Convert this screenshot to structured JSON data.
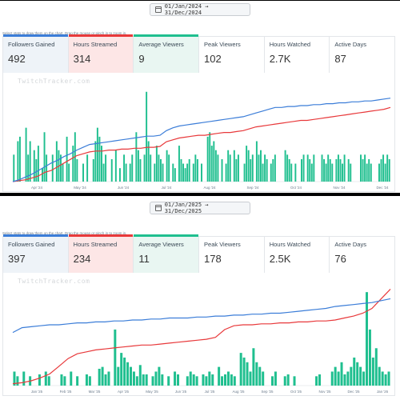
{
  "hint_text": "Select stats to draw them on the chart. Drag the mouse or pinch in to zoom in.",
  "watermark": "TwitchTracker.com",
  "colors": {
    "followers": "#3b7dd8",
    "hours": "#e8393b",
    "viewers": "#1fbf8f"
  },
  "icons": {
    "date_range": "calendar-icon"
  },
  "panels": [
    {
      "date_range": "01/Jan/2024 → 31/Dec/2024",
      "stats": [
        {
          "label": "Followers Gained",
          "value": "492"
        },
        {
          "label": "Hours Streamed",
          "value": "314"
        },
        {
          "label": "Average Viewers",
          "value": "9"
        },
        {
          "label": "Peak Viewers",
          "value": "102"
        },
        {
          "label": "Hours Watched",
          "value": "2.7K"
        },
        {
          "label": "Active Days",
          "value": "87"
        }
      ],
      "chart_data": {
        "type": "line",
        "x_labels": [
          "Apr '24",
          "May '24",
          "Jun '24",
          "Jul '24",
          "Aug '24",
          "Sep '24",
          "Oct '24",
          "Nov '24",
          "Dec '24"
        ],
        "series": [],
        "bars_daily_avg_viewers": [
          0.3,
          0,
          0.45,
          0.5,
          0,
          0,
          0.6,
          0.3,
          0.45,
          0,
          0.35,
          0.25,
          0.4,
          0,
          0.15,
          0.55,
          0.3,
          0,
          0,
          0.3,
          0,
          0.45,
          0.35,
          0.3,
          0.2,
          0,
          0.5,
          0.2,
          0,
          0.4,
          0.55,
          0.25,
          0,
          0,
          0.2,
          0,
          0.3,
          0,
          0,
          0.25,
          0.45,
          0.6,
          0.5,
          0.4,
          0.2,
          0.3,
          0,
          0,
          0.25,
          0,
          0.35,
          0,
          0.15,
          0,
          0.3,
          0.2,
          0,
          0.2,
          0.3,
          0,
          0.55,
          0.35,
          0.25,
          0,
          0.3,
          1.0,
          0.45,
          0.3,
          0,
          0.2,
          0.4,
          0.3,
          0.25,
          0.2,
          0,
          0.35,
          0.3,
          0,
          0.2,
          0.15,
          0,
          0.4,
          0.25,
          0.2,
          0.15,
          0.2,
          0.25,
          0,
          0.2,
          0.3,
          0.25,
          0,
          0.2,
          0,
          0,
          0.5,
          0.55,
          0.4,
          0.45,
          0.35,
          0.3,
          0,
          0.25,
          0,
          0.2,
          0.35,
          0.3,
          0,
          0.35,
          0.25,
          0.3,
          0,
          0,
          0.2,
          0.4,
          0.35,
          0.25,
          0.3,
          0,
          0.45,
          0.3,
          0.35,
          0.2,
          0.3,
          0.25,
          0,
          0.2,
          0.25,
          0.3,
          0,
          0,
          0,
          0,
          0.35,
          0.3,
          0.25,
          0.2,
          0,
          0.2,
          0,
          0,
          0.25,
          0.3,
          0,
          0.3,
          0.25,
          0.2,
          0.3,
          0,
          0,
          0,
          0.3,
          0.25,
          0.2,
          0.3,
          0.25,
          0.2,
          0,
          0.25,
          0.3,
          0.25,
          0.2,
          0.3,
          0,
          0.25,
          0.2,
          0,
          0,
          0,
          0,
          0.3,
          0.25,
          0.3,
          0.2,
          0.25,
          0.2,
          0,
          0,
          0,
          0.2,
          0.25,
          0.3,
          0.2,
          0.3,
          0.25
        ],
        "followers_cumulative": [
          0,
          0.02,
          0.05,
          0.08,
          0.12,
          0.16,
          0.2,
          0.23,
          0.27,
          0.3,
          0.34,
          0.37,
          0.4,
          0.41,
          0.42,
          0.43,
          0.44,
          0.45,
          0.46,
          0.47,
          0.48,
          0.49,
          0.49,
          0.5,
          0.55,
          0.58,
          0.6,
          0.61,
          0.62,
          0.63,
          0.64,
          0.65,
          0.66,
          0.67,
          0.68,
          0.69,
          0.7,
          0.72,
          0.74,
          0.76,
          0.78,
          0.8,
          0.8,
          0.81,
          0.81,
          0.82,
          0.82,
          0.83,
          0.83,
          0.84,
          0.84,
          0.85,
          0.85,
          0.86,
          0.86,
          0.87,
          0.87,
          0.88,
          0.89,
          0.9
        ],
        "hours_cumulative": [
          0,
          0.01,
          0.02,
          0.04,
          0.06,
          0.1,
          0.12,
          0.16,
          0.2,
          0.24,
          0.28,
          0.3,
          0.32,
          0.33,
          0.33,
          0.34,
          0.34,
          0.35,
          0.35,
          0.36,
          0.36,
          0.37,
          0.37,
          0.38,
          0.43,
          0.45,
          0.47,
          0.48,
          0.49,
          0.5,
          0.5,
          0.51,
          0.52,
          0.53,
          0.53,
          0.54,
          0.55,
          0.57,
          0.59,
          0.6,
          0.61,
          0.62,
          0.63,
          0.64,
          0.65,
          0.66,
          0.66,
          0.67,
          0.68,
          0.69,
          0.7,
          0.71,
          0.72,
          0.73,
          0.74,
          0.75,
          0.76,
          0.77,
          0.78,
          0.8
        ]
      }
    },
    {
      "date_range": "01/Jan/2025 → 31/Dec/2025",
      "stats": [
        {
          "label": "Followers Gained",
          "value": "397"
        },
        {
          "label": "Hours Streamed",
          "value": "234"
        },
        {
          "label": "Average Viewers",
          "value": "11"
        },
        {
          "label": "Peak Viewers",
          "value": "178"
        },
        {
          "label": "Hours Watched",
          "value": "2.5K"
        },
        {
          "label": "Active Days",
          "value": "76"
        }
      ],
      "chart_data": {
        "type": "line",
        "x_labels": [
          "Jan '25",
          "Feb '25",
          "Mar '25",
          "Apr '25",
          "May '25",
          "Jun '25",
          "Jul '25",
          "Aug '25",
          "Sep '25",
          "Oct '25",
          "Nov '25",
          "Dec '25",
          "Jan '26"
        ],
        "series": [],
        "bars_daily_avg_viewers": [
          0.15,
          0.1,
          0,
          0.15,
          0,
          0.1,
          0,
          0,
          0.12,
          0,
          0.15,
          0.1,
          0,
          0,
          0,
          0.12,
          0.1,
          0,
          0.15,
          0,
          0.1,
          0,
          0,
          0.12,
          0.1,
          0,
          0,
          0.18,
          0.2,
          0.12,
          0.15,
          0,
          0.6,
          0.2,
          0.35,
          0.3,
          0.25,
          0.2,
          0.15,
          0.1,
          0.22,
          0.12,
          0.12,
          0,
          0.1,
          0.15,
          0.2,
          0.12,
          0,
          0.1,
          0,
          0.15,
          0.12,
          0,
          0,
          0.1,
          0.15,
          0.12,
          0.1,
          0,
          0.12,
          0.1,
          0.15,
          0.12,
          0,
          0.2,
          0.1,
          0.12,
          0.15,
          0.12,
          0.1,
          0,
          0.35,
          0.3,
          0.25,
          0.15,
          0.4,
          0.25,
          0.2,
          0.15,
          0,
          0,
          0.1,
          0.15,
          0,
          0,
          0.1,
          0.12,
          0,
          0.1,
          0,
          0,
          0,
          0,
          0,
          0,
          0.1,
          0.12,
          0,
          0,
          0,
          0.15,
          0.2,
          0.15,
          0.25,
          0.12,
          0.15,
          0.2,
          0.3,
          0.25,
          0.2,
          0.15,
          1.0,
          0.6,
          0.3,
          0.4,
          0.2,
          0.15,
          0.12,
          0.15
        ],
        "followers_cumulative": [
          0.55,
          0.6,
          0.61,
          0.62,
          0.63,
          0.63,
          0.64,
          0.65,
          0.65,
          0.66,
          0.66,
          0.67,
          0.67,
          0.68,
          0.68,
          0.69,
          0.69,
          0.7,
          0.7,
          0.7,
          0.71,
          0.71,
          0.72,
          0.72,
          0.73,
          0.73,
          0.74,
          0.74,
          0.75,
          0.75,
          0.76,
          0.77,
          0.78,
          0.79,
          0.8,
          0.82,
          0.83,
          0.84,
          0.85,
          0.86,
          0.88,
          0.9
        ],
        "hours_cumulative": [
          0.02,
          0.03,
          0.05,
          0.08,
          0.12,
          0.2,
          0.28,
          0.33,
          0.35,
          0.37,
          0.38,
          0.39,
          0.4,
          0.41,
          0.42,
          0.42,
          0.43,
          0.44,
          0.45,
          0.46,
          0.47,
          0.48,
          0.5,
          0.58,
          0.62,
          0.63,
          0.63,
          0.64,
          0.64,
          0.65,
          0.65,
          0.66,
          0.66,
          0.67,
          0.67,
          0.68,
          0.7,
          0.72,
          0.75,
          0.8,
          0.9,
          1.0
        ]
      }
    }
  ]
}
